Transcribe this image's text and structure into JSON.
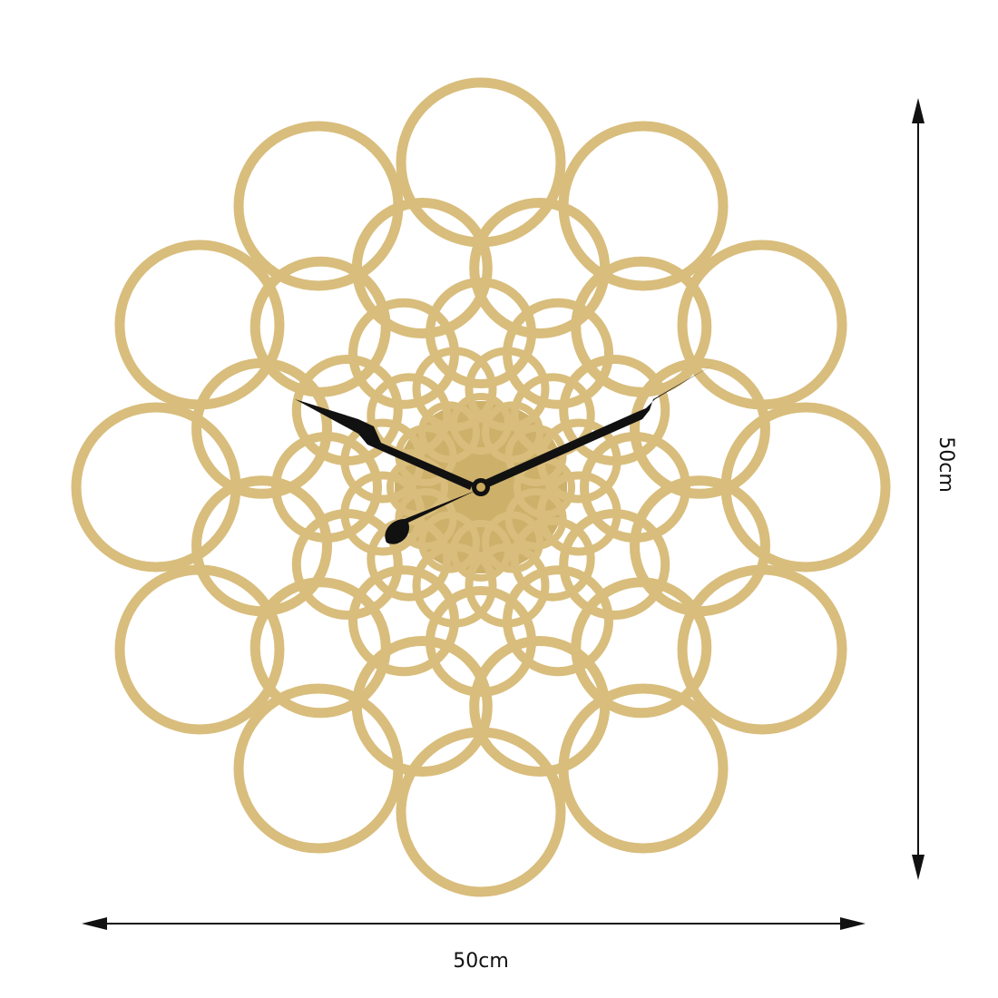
{
  "dimensions": {
    "width": "50cm",
    "height": "50cm"
  }
}
